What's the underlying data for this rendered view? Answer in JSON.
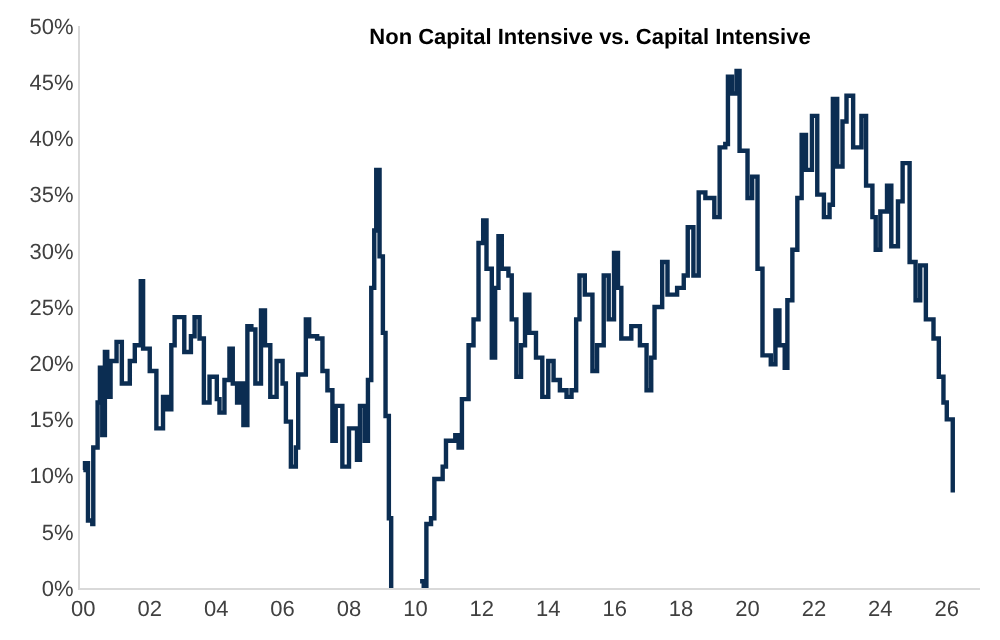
{
  "chart_data": {
    "type": "step",
    "title": "Non Capital Intensive vs. Capital Intensive",
    "x": [
      2000.0,
      2000.05,
      2000.14,
      2000.27,
      2000.3,
      2000.43,
      2000.5,
      2000.57,
      2000.65,
      2000.72,
      2000.82,
      2001.0,
      2001.16,
      2001.4,
      2001.55,
      2001.73,
      2001.8,
      2002.0,
      2002.2,
      2002.4,
      2002.53,
      2002.65,
      2002.75,
      2002.94,
      2003.04,
      2003.24,
      2003.35,
      2003.5,
      2003.63,
      2003.8,
      2004.02,
      2004.1,
      2004.25,
      2004.4,
      2004.5,
      2004.63,
      2004.75,
      2004.82,
      2004.94,
      2005.06,
      2005.18,
      2005.35,
      2005.47,
      2005.63,
      2005.82,
      2006.0,
      2006.1,
      2006.25,
      2006.4,
      2006.47,
      2006.7,
      2006.8,
      2007.04,
      2007.2,
      2007.35,
      2007.5,
      2007.6,
      2007.8,
      2008.0,
      2008.24,
      2008.33,
      2008.47,
      2008.57,
      2008.67,
      2008.76,
      2008.82,
      2008.92,
      2009.02,
      2009.1,
      2009.2,
      2009.27,
      2009.3,
      2010.1,
      2010.14,
      2010.25,
      2010.33,
      2010.47,
      2010.57,
      2010.82,
      2010.92,
      2011.2,
      2011.3,
      2011.4,
      2011.6,
      2011.75,
      2011.9,
      2012.04,
      2012.14,
      2012.3,
      2012.4,
      2012.5,
      2012.6,
      2012.8,
      2012.9,
      2013.04,
      2013.18,
      2013.3,
      2013.43,
      2013.63,
      2013.82,
      2014.0,
      2014.16,
      2014.35,
      2014.55,
      2014.7,
      2014.84,
      2014.94,
      2015.1,
      2015.33,
      2015.47,
      2015.67,
      2015.82,
      2015.98,
      2016.1,
      2016.2,
      2016.5,
      2016.76,
      2016.96,
      2017.1,
      2017.2,
      2017.43,
      2017.59,
      2017.88,
      2018.08,
      2018.2,
      2018.37,
      2018.53,
      2018.73,
      2019.0,
      2019.16,
      2019.33,
      2019.41,
      2019.53,
      2019.67,
      2019.76,
      2020.0,
      2020.14,
      2020.3,
      2020.45,
      2020.7,
      2020.84,
      2020.96,
      2021.12,
      2021.2,
      2021.35,
      2021.5,
      2021.63,
      2021.76,
      2021.94,
      2022.1,
      2022.3,
      2022.47,
      2022.57,
      2022.7,
      2022.86,
      2022.98,
      2023.18,
      2023.43,
      2023.57,
      2023.76,
      2023.86,
      2024.0,
      2024.2,
      2024.33,
      2024.53,
      2024.67,
      2024.88,
      2025.06,
      2025.2,
      2025.37,
      2025.6,
      2025.76,
      2025.9,
      2026.0,
      2026.18
    ],
    "series": [
      {
        "color": "#0b2d52",
        "values": [
          10.5,
          11.1,
          6.0,
          5.7,
          12.5,
          16.5,
          19.6,
          13.6,
          21.0,
          17.0,
          20.2,
          21.9,
          18.2,
          20.2,
          21.6,
          27.3,
          21.3,
          19.3,
          14.2,
          17.0,
          15.9,
          21.6,
          24.1,
          24.1,
          21.0,
          22.4,
          24.1,
          22.2,
          16.5,
          18.8,
          16.8,
          15.6,
          18.5,
          21.3,
          18.2,
          16.5,
          18.2,
          14.5,
          23.3,
          23.0,
          18.2,
          24.7,
          21.6,
          17.0,
          20.2,
          18.2,
          14.8,
          10.8,
          12.5,
          19.0,
          23.9,
          22.4,
          22.2,
          19.3,
          17.6,
          13.1,
          16.2,
          10.8,
          14.2,
          11.4,
          16.2,
          13.1,
          18.5,
          26.7,
          31.8,
          37.2,
          29.5,
          22.7,
          15.3,
          6.2,
          0.0,
          null,
          null,
          0.6,
          0.0,
          5.7,
          6.2,
          9.7,
          10.8,
          13.1,
          13.6,
          12.5,
          16.8,
          21.6,
          23.9,
          30.7,
          32.7,
          28.4,
          20.5,
          26.7,
          31.3,
          28.4,
          27.8,
          23.9,
          18.8,
          21.6,
          26.1,
          22.7,
          20.5,
          17.0,
          20.2,
          18.5,
          17.6,
          17.0,
          17.6,
          23.9,
          27.8,
          26.1,
          19.3,
          21.6,
          27.8,
          23.9,
          29.8,
          26.7,
          22.2,
          23.3,
          21.6,
          17.6,
          20.5,
          25.0,
          29.0,
          26.1,
          26.7,
          27.8,
          32.1,
          27.8,
          35.2,
          34.7,
          33.0,
          39.2,
          39.5,
          45.5,
          44.0,
          46.0,
          38.9,
          34.7,
          36.6,
          28.4,
          20.7,
          19.9,
          24.7,
          21.6,
          19.6,
          25.6,
          30.1,
          34.7,
          40.3,
          37.2,
          42.0,
          35.0,
          33.0,
          34.1,
          43.5,
          37.5,
          41.5,
          43.8,
          39.2,
          42.0,
          35.8,
          33.0,
          30.1,
          33.5,
          35.8,
          30.4,
          34.4,
          37.8,
          29.0,
          25.6,
          28.7,
          23.9,
          22.2,
          18.8,
          16.5,
          15.0,
          8.5
        ]
      }
    ],
    "xlim": [
      1999.9,
      2027
    ],
    "xticks": [
      {
        "value": 2000,
        "label": "00"
      },
      {
        "value": 2002,
        "label": "02"
      },
      {
        "value": 2004,
        "label": "04"
      },
      {
        "value": 2006,
        "label": "06"
      },
      {
        "value": 2008,
        "label": "08"
      },
      {
        "value": 2010,
        "label": "10"
      },
      {
        "value": 2012,
        "label": "12"
      },
      {
        "value": 2014,
        "label": "14"
      },
      {
        "value": 2016,
        "label": "16"
      },
      {
        "value": 2018,
        "label": "18"
      },
      {
        "value": 2020,
        "label": "20"
      },
      {
        "value": 2022,
        "label": "22"
      },
      {
        "value": 2024,
        "label": "24"
      },
      {
        "value": 2026,
        "label": "26"
      }
    ],
    "yticks": [
      {
        "value": 0,
        "label": "0%"
      },
      {
        "value": 5,
        "label": "5%"
      },
      {
        "value": 10,
        "label": "10%"
      },
      {
        "value": 15,
        "label": "15%"
      },
      {
        "value": 20,
        "label": "20%"
      },
      {
        "value": 25,
        "label": "25%"
      },
      {
        "value": 30,
        "label": "30%"
      },
      {
        "value": 35,
        "label": "35%"
      },
      {
        "value": 40,
        "label": "40%"
      },
      {
        "value": 45,
        "label": "45%"
      },
      {
        "value": 50,
        "label": "50%"
      }
    ],
    "ylim": [
      0,
      50
    ]
  }
}
